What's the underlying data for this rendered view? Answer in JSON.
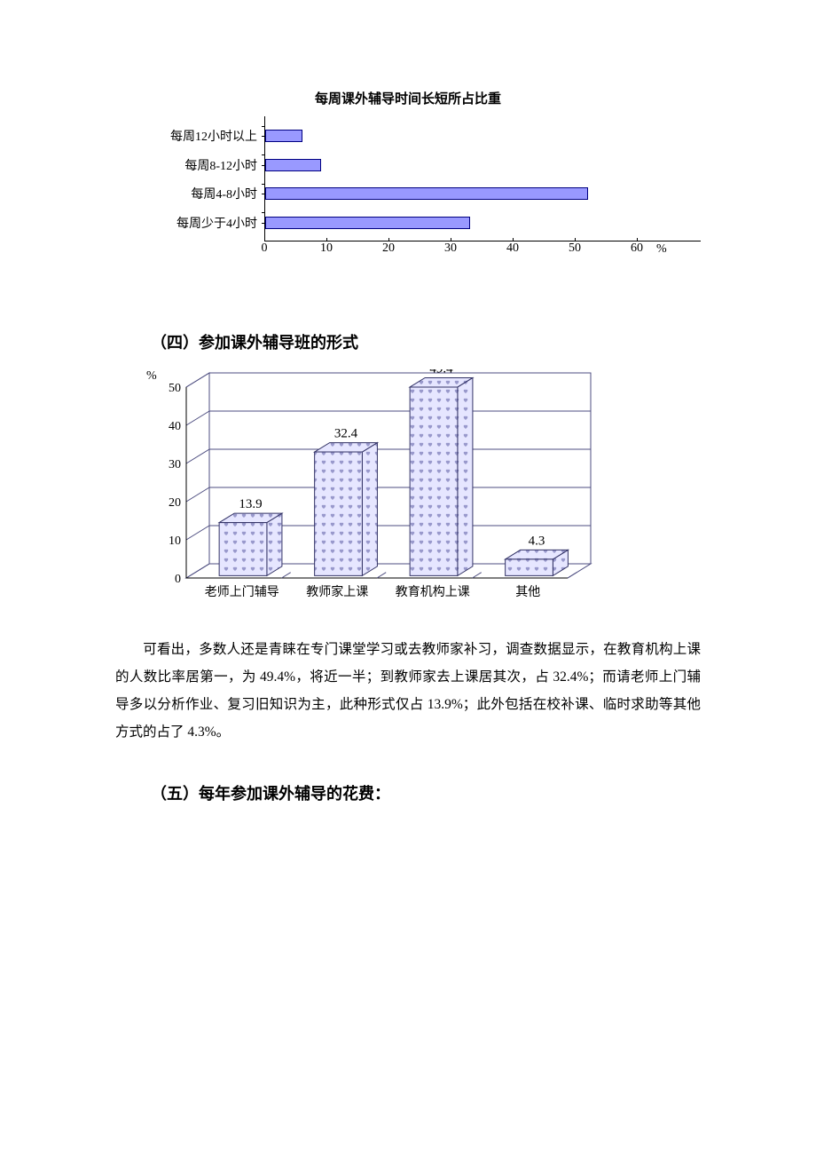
{
  "chart1": {
    "title": "每周课外辅导时间长短所占比重",
    "type": "bar-horizontal",
    "categories": [
      "每周12小时以上",
      "每周8-12小时",
      "每周4-8小时",
      "每周少于4小时"
    ],
    "values": [
      6,
      9,
      52,
      33
    ],
    "xlim": [
      0,
      60
    ],
    "xticks": [
      0,
      10,
      20,
      30,
      40,
      50,
      60
    ],
    "bar_color": "#9999ff",
    "bar_border": "#000080",
    "unit": "%",
    "label_fontsize": 14
  },
  "section4": {
    "heading": "（四）参加课外辅导班的形式"
  },
  "chart2": {
    "type": "bar-3d",
    "categories": [
      "老师上门辅导",
      "教师家上课",
      "教育机构上课",
      "其他"
    ],
    "values": [
      13.9,
      32.4,
      49.4,
      4.3
    ],
    "ylim": [
      0,
      50
    ],
    "yticks": [
      0,
      10,
      20,
      30,
      40,
      50
    ],
    "unit": "%",
    "bar_fill": "#e6e6ff",
    "bar_pattern_color": "#9999cc",
    "bar_border": "#333366",
    "grid_color": "#4d4d80",
    "back_fill": "#ffffff",
    "label_fontsize": 14,
    "value_fontsize": 15
  },
  "paragraph": {
    "text": "可看出，多数人还是青睐在专门课堂学习或去教师家补习，调查数据显示，在教育机构上课的人数比率居第一，为 49.4%，将近一半；到教师家去上课居其次，占 32.4%；而请老师上门辅导多以分析作业、复习旧知识为主，此种形式仅占 13.9%；此外包括在校补课、临时求助等其他方式的占了 4.3%。"
  },
  "section5": {
    "heading": "（五）每年参加课外辅导的花费："
  }
}
